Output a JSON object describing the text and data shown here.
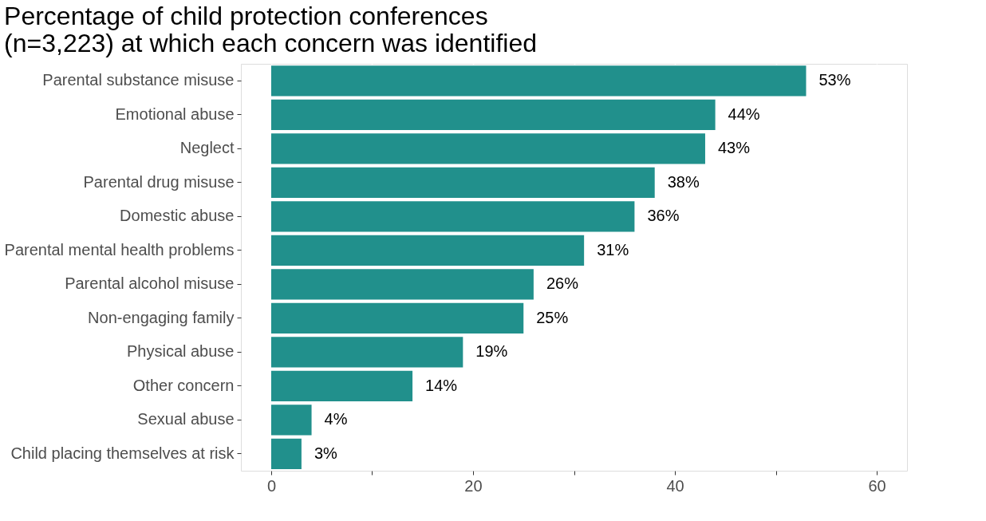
{
  "chart_data": {
    "type": "bar",
    "orientation": "horizontal",
    "title": "Percentage of child protection conferences\n(n=3,223) at which each concern was identified",
    "categories": [
      "Parental substance misuse",
      "Emotional abuse",
      "Neglect",
      "Parental drug misuse",
      "Domestic abuse",
      "Parental mental health problems",
      "Parental alcohol misuse",
      "Non-engaging family",
      "Physical abuse",
      "Other concern",
      "Sexual abuse",
      "Child placing themselves at risk"
    ],
    "values": [
      53,
      44,
      43,
      38,
      36,
      31,
      26,
      25,
      19,
      14,
      4,
      3
    ],
    "value_labels": [
      "53%",
      "44%",
      "43%",
      "38%",
      "36%",
      "31%",
      "26%",
      "25%",
      "19%",
      "14%",
      "4%",
      "3%"
    ],
    "color": "#21908c",
    "xlim": [
      -3,
      63
    ],
    "xticks": [
      0,
      {
        "value": 10,
        "label": null
      },
      20,
      {
        "value": 30,
        "label": null
      },
      40,
      {
        "value": 50,
        "label": null
      },
      60
    ],
    "grid": "x"
  }
}
